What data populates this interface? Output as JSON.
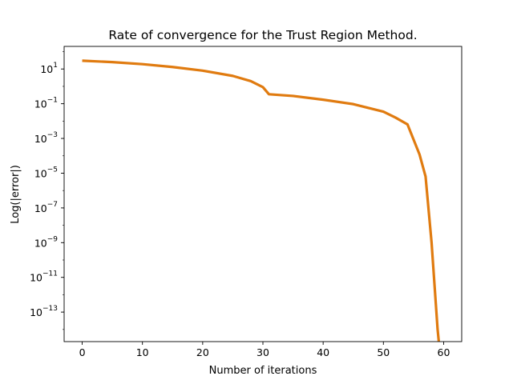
{
  "chart_data": {
    "type": "line",
    "title": "Rate of convergence for the Trust Region Method.",
    "xlabel": "Number of iterations",
    "ylabel": "Log(|error|)",
    "yscale": "log",
    "xlim": [
      -3,
      63
    ],
    "ylim": [
      2e-15,
      200
    ],
    "grid": false,
    "x_ticks": [
      0,
      10,
      20,
      30,
      40,
      50,
      60
    ],
    "y_ticks": [
      {
        "base": "10",
        "exp": "1",
        "value": 10
      },
      {
        "base": "10",
        "exp": "−1",
        "value": 0.1
      },
      {
        "base": "10",
        "exp": "−3",
        "value": 0.001
      },
      {
        "base": "10",
        "exp": "−5",
        "value": 1e-05
      },
      {
        "base": "10",
        "exp": "−7",
        "value": 1e-07
      },
      {
        "base": "10",
        "exp": "−9",
        "value": 1e-09
      },
      {
        "base": "10",
        "exp": "−11",
        "value": 1e-11
      },
      {
        "base": "10",
        "exp": "−13",
        "value": 1e-13
      }
    ],
    "series": [
      {
        "color": "#e07b10",
        "x": [
          0,
          5,
          10,
          15,
          20,
          25,
          28,
          30,
          31,
          35,
          40,
          45,
          50,
          52,
          54,
          56,
          57,
          58,
          59,
          59.2
        ],
        "y": [
          30,
          25,
          19,
          13,
          8,
          4,
          2,
          0.9,
          0.35,
          0.28,
          0.17,
          0.095,
          0.035,
          0.016,
          0.0065,
          0.00012,
          6.5e-06,
          1e-09,
          1e-14,
          2e-15
        ]
      }
    ]
  }
}
